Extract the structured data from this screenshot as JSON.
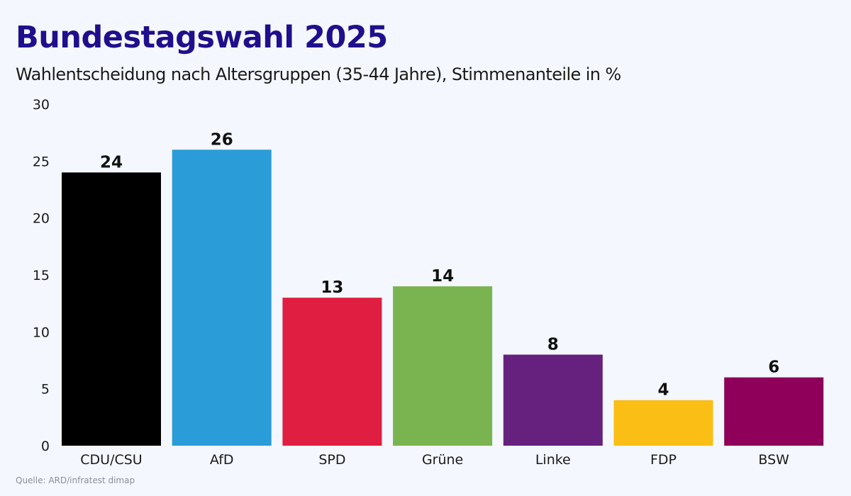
{
  "title": "Bundestagswahl 2025",
  "subtitle": "Wahlentscheidung nach Altersgruppen (35-44 Jahre), Stimmenanteile in %",
  "source": "Quelle: ARD/infratest dimap",
  "chart_data": {
    "type": "bar",
    "title": "Bundestagswahl 2025",
    "subtitle": "Wahlentscheidung nach Altersgruppen (35-44 Jahre), Stimmenanteile in %",
    "categories": [
      "CDU/CSU",
      "AfD",
      "SPD",
      "Grüne",
      "Linke",
      "FDP",
      "BSW"
    ],
    "values": [
      24,
      26,
      13,
      14,
      8,
      4,
      6
    ],
    "colors": [
      "#000000",
      "#2a9cd8",
      "#e01e41",
      "#7ab450",
      "#66217f",
      "#fbbe14",
      "#8e0059"
    ],
    "ylim": [
      0,
      30
    ],
    "yticks": [
      0,
      5,
      10,
      15,
      20,
      25,
      30
    ],
    "grid": false,
    "legend": "none",
    "xlabel": "",
    "ylabel": ""
  }
}
